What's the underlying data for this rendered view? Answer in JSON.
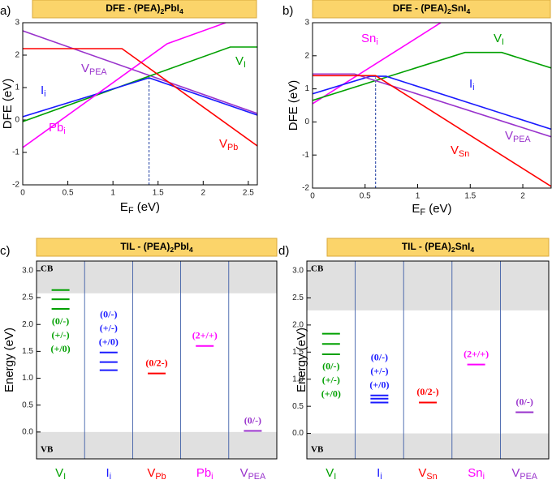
{
  "chart_data": [
    {
      "type": "line",
      "panel": "a)",
      "title": [
        "DFE - (PEA)",
        "2",
        "PbI",
        "4"
      ],
      "xlabel": [
        "E",
        "F",
        " (eV)"
      ],
      "ylabel": [
        "DFE (eV)"
      ],
      "xlim": [
        0,
        2.6
      ],
      "ylim": [
        -2,
        3
      ],
      "xticks": [
        0,
        0.5,
        1,
        1.5,
        2,
        2.5
      ],
      "yticks": [
        -2,
        -1,
        0,
        1,
        2,
        3
      ],
      "crossing": {
        "x": 1.4,
        "y": 1.3
      },
      "series": [
        {
          "name": [
            "V",
            "PEA"
          ],
          "color": "#9933cc",
          "x": [
            0,
            2.6
          ],
          "values": [
            2.75,
            0.2
          ]
        },
        {
          "name": [
            "V",
            "I"
          ],
          "color": "#00a000",
          "x": [
            0,
            2.3,
            2.6
          ],
          "values": [
            -0.05,
            2.25,
            2.25
          ]
        },
        {
          "name": [
            "I",
            "i"
          ],
          "color": "#1a1aff",
          "x": [
            0,
            1.4,
            2.6
          ],
          "values": [
            0.1,
            1.3,
            0.15
          ]
        },
        {
          "name": [
            "Pb",
            "i"
          ],
          "color": "#ff00ff",
          "x": [
            0,
            1.6,
            2.25
          ],
          "values": [
            -0.85,
            2.35,
            3
          ]
        },
        {
          "name": [
            "V",
            "Pb"
          ],
          "color": "#ff0000",
          "x": [
            0,
            1.1,
            2.6
          ],
          "values": [
            2.2,
            2.2,
            -0.8
          ]
        }
      ]
    },
    {
      "type": "line",
      "panel": "b)",
      "title": [
        "DFE - (PEA)",
        "2",
        "SnI",
        "4"
      ],
      "xlabel": [
        "E",
        "F",
        " (eV)"
      ],
      "ylabel": [
        "DFE (eV)"
      ],
      "xlim": [
        0,
        2.27
      ],
      "ylim": [
        -2,
        3
      ],
      "xticks": [
        0,
        0.5,
        1,
        1.5,
        2
      ],
      "yticks": [
        -2,
        -1,
        0,
        1,
        2,
        3
      ],
      "crossing": {
        "x": 0.6,
        "y": 1.35
      },
      "series": [
        {
          "name": [
            "Sn",
            "i"
          ],
          "color": "#ff00ff",
          "x": [
            0,
            1.22
          ],
          "values": [
            0.55,
            3
          ]
        },
        {
          "name": [
            "V",
            "I"
          ],
          "color": "#00a000",
          "x": [
            0,
            1.45,
            1.8,
            2.27
          ],
          "values": [
            0.65,
            2.1,
            2.1,
            1.63
          ]
        },
        {
          "name": [
            "I",
            "i"
          ],
          "color": "#1a1aff",
          "x": [
            0,
            0.55,
            0.7,
            2.27
          ],
          "values": [
            0.85,
            1.38,
            1.38,
            -0.22
          ]
        },
        {
          "name": [
            "V",
            "PEA"
          ],
          "color": "#9933cc",
          "x": [
            0,
            0.4,
            2.27
          ],
          "values": [
            1.45,
            1.45,
            -0.45
          ]
        },
        {
          "name": [
            "V",
            "Sn"
          ],
          "color": "#ff0000",
          "x": [
            0,
            0.6,
            2.27
          ],
          "values": [
            1.4,
            1.4,
            -1.95
          ]
        }
      ]
    },
    {
      "type": "levels",
      "panel": "c)",
      "title": [
        "TIL - (PEA)",
        "2",
        "PbI",
        "4"
      ],
      "ylabel": [
        "Energy (eV)"
      ],
      "ylim": [
        -0.5,
        3.18
      ],
      "band_labels": {
        "cb": "CB",
        "vb": "VB"
      },
      "cbm": 2.58,
      "vbm": 0,
      "yticks": [
        {
          "value": 0,
          "label": "0.0"
        },
        {
          "value": 0.5,
          "label": "0.5"
        },
        {
          "value": 1,
          "label": "1.0"
        },
        {
          "value": 1.5,
          "label": "1.5"
        },
        {
          "value": 2,
          "label": "2.0"
        },
        {
          "value": 2.5,
          "label": "2.5"
        },
        {
          "value": 3,
          "label": "3.0"
        }
      ],
      "series": [
        {
          "name": [
            "V",
            "I"
          ],
          "color": "#00a000",
          "values": [
            2.64,
            2.47,
            2.29
          ],
          "labels": [
            "(0/-)",
            "(+/-)",
            "(+/0)"
          ]
        },
        {
          "name": [
            "I",
            "i"
          ],
          "color": "#1a1aff",
          "values": [
            1.48,
            1.3,
            1.15
          ],
          "labels": [
            "(0/-)",
            "(+/-)",
            "(+/0)"
          ]
        },
        {
          "name": [
            "V",
            "Pb"
          ],
          "color": "#ff0000",
          "values": [
            1.09
          ],
          "labels": [
            "(0/2-)"
          ]
        },
        {
          "name": [
            "Pb",
            "i"
          ],
          "color": "#ff00ff",
          "values": [
            1.6
          ],
          "labels": [
            "(2+/+)"
          ]
        },
        {
          "name": [
            "V",
            "PEA"
          ],
          "color": "#9933cc",
          "values": [
            0.02
          ],
          "labels": [
            "(0/-)"
          ]
        }
      ]
    },
    {
      "type": "levels",
      "panel": "d)",
      "title": [
        "TIL - (PEA)",
        "2",
        "SnI",
        "4"
      ],
      "ylabel": [
        "Energy (eV)"
      ],
      "ylim": [
        -0.47,
        3.18
      ],
      "band_labels": {
        "cb": "CB",
        "vb": "VB"
      },
      "cbm": 2.27,
      "vbm": 0,
      "yticks": [
        {
          "value": 0,
          "label": "0.0"
        },
        {
          "value": 0.5,
          "label": "0.5"
        },
        {
          "value": 1,
          "label": "1.0"
        },
        {
          "value": 1.5,
          "label": "1.5"
        },
        {
          "value": 2,
          "label": "2.0"
        },
        {
          "value": 2.5,
          "label": "2.5"
        },
        {
          "value": 3,
          "label": "3.0"
        }
      ],
      "series": [
        {
          "name": [
            "V",
            "I"
          ],
          "color": "#00a000",
          "values": [
            1.84,
            1.65,
            1.46
          ],
          "labels": [
            "(0/-)",
            "(+/-)",
            "(+/0)"
          ]
        },
        {
          "name": [
            "I",
            "i"
          ],
          "color": "#1a1aff",
          "values": [
            0.7,
            0.64,
            0.57
          ],
          "labels": [
            "(0/-)",
            "(+/-)",
            "(+/0)"
          ]
        },
        {
          "name": [
            "V",
            "Sn"
          ],
          "color": "#ff0000",
          "values": [
            0.57
          ],
          "labels": [
            "(0/2-)"
          ]
        },
        {
          "name": [
            "Sn",
            "i"
          ],
          "color": "#ff00ff",
          "values": [
            1.27
          ],
          "labels": [
            "(2+/+)"
          ]
        },
        {
          "name": [
            "V",
            "PEA"
          ],
          "color": "#9933cc",
          "values": [
            0.39
          ],
          "labels": [
            "(0/-)"
          ]
        }
      ]
    }
  ]
}
